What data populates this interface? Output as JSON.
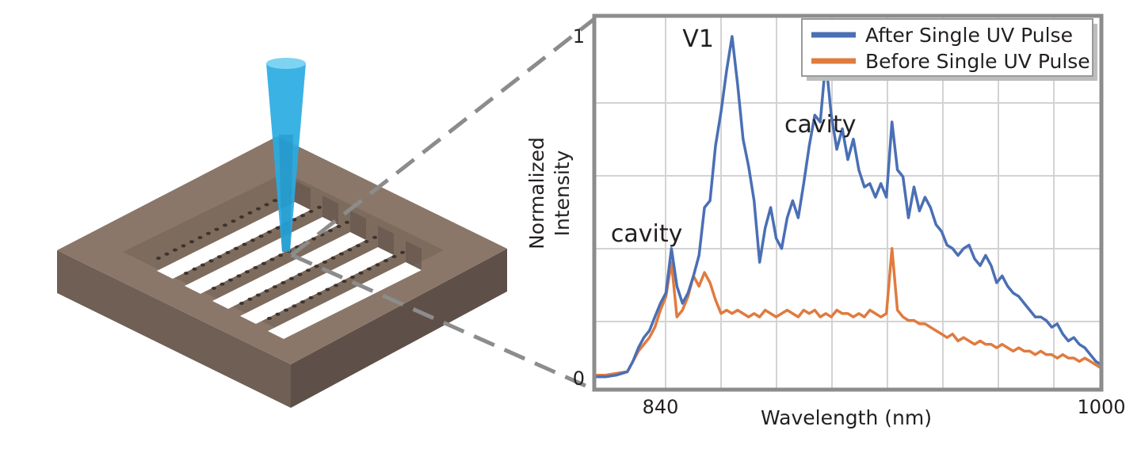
{
  "chart_data": {
    "type": "line",
    "title": "",
    "xlabel": "Wavelength (nm)",
    "ylabel": "Normalized Intensity",
    "ylabel_lines": [
      "Normalized",
      "Intensity"
    ],
    "xlim": [
      816,
      1000
    ],
    "ylim": [
      0,
      1
    ],
    "x_tick_labels": [
      {
        "value": 840,
        "text": "840"
      },
      {
        "value": 1000,
        "text": "1000"
      }
    ],
    "y_tick_labels": [
      {
        "value": 0,
        "text": "0"
      },
      {
        "value": 1,
        "text": "1"
      }
    ],
    "grid": true,
    "legend_position": "top-right",
    "annotations": [
      {
        "text": "V1",
        "x": 848,
        "y": 0.97
      },
      {
        "text": "cavity",
        "x": 885,
        "y": 0.72
      },
      {
        "text": "cavity",
        "x": 822,
        "y": 0.4
      }
    ],
    "series": [
      {
        "name": "After Single UV Pulse",
        "color": "#4a6fb5",
        "x": [
          816,
          820,
          824,
          828,
          830,
          832,
          834,
          836,
          838,
          840,
          842,
          844,
          846,
          848,
          850,
          852,
          854,
          856,
          858,
          860,
          862,
          864,
          866,
          868,
          870,
          872,
          874,
          876,
          878,
          880,
          882,
          884,
          886,
          888,
          890,
          892,
          894,
          896,
          898,
          900,
          902,
          904,
          906,
          908,
          910,
          912,
          914,
          916,
          918,
          920,
          922,
          924,
          926,
          928,
          930,
          932,
          934,
          936,
          938,
          940,
          942,
          944,
          946,
          948,
          950,
          952,
          954,
          956,
          958,
          960,
          962,
          964,
          966,
          968,
          970,
          972,
          974,
          976,
          978,
          980,
          982,
          984,
          986,
          988,
          990,
          992,
          994,
          996,
          998,
          1000
        ],
        "y": [
          0.005,
          0.005,
          0.01,
          0.02,
          0.05,
          0.09,
          0.12,
          0.14,
          0.18,
          0.22,
          0.25,
          0.38,
          0.27,
          0.22,
          0.25,
          0.3,
          0.36,
          0.5,
          0.52,
          0.68,
          0.78,
          0.9,
          1.0,
          0.86,
          0.7,
          0.62,
          0.52,
          0.34,
          0.44,
          0.5,
          0.41,
          0.38,
          0.47,
          0.52,
          0.47,
          0.57,
          0.68,
          0.77,
          0.75,
          0.93,
          0.77,
          0.67,
          0.73,
          0.64,
          0.7,
          0.61,
          0.56,
          0.57,
          0.53,
          0.57,
          0.53,
          0.75,
          0.61,
          0.59,
          0.47,
          0.56,
          0.49,
          0.53,
          0.5,
          0.45,
          0.43,
          0.39,
          0.38,
          0.36,
          0.38,
          0.39,
          0.35,
          0.33,
          0.36,
          0.33,
          0.28,
          0.3,
          0.27,
          0.25,
          0.24,
          0.22,
          0.2,
          0.18,
          0.18,
          0.17,
          0.15,
          0.16,
          0.13,
          0.11,
          0.12,
          0.1,
          0.09,
          0.07,
          0.05,
          0.04
        ]
      },
      {
        "name": "Before Single UV Pulse",
        "color": "#e07b3e",
        "x": [
          816,
          820,
          824,
          828,
          830,
          832,
          834,
          836,
          838,
          840,
          842,
          844,
          846,
          848,
          850,
          852,
          854,
          856,
          858,
          860,
          862,
          864,
          866,
          868,
          870,
          872,
          874,
          876,
          878,
          880,
          882,
          884,
          886,
          888,
          890,
          892,
          894,
          896,
          898,
          900,
          902,
          904,
          906,
          908,
          910,
          912,
          914,
          916,
          918,
          920,
          922,
          924,
          926,
          928,
          930,
          932,
          934,
          936,
          938,
          940,
          942,
          944,
          946,
          948,
          950,
          952,
          954,
          956,
          958,
          960,
          962,
          964,
          966,
          968,
          970,
          972,
          974,
          976,
          978,
          980,
          982,
          984,
          986,
          988,
          990,
          992,
          994,
          996,
          998,
          1000
        ],
        "y": [
          0.01,
          0.01,
          0.015,
          0.02,
          0.05,
          0.08,
          0.1,
          0.12,
          0.15,
          0.2,
          0.24,
          0.34,
          0.18,
          0.2,
          0.24,
          0.3,
          0.27,
          0.31,
          0.28,
          0.23,
          0.19,
          0.2,
          0.19,
          0.2,
          0.19,
          0.18,
          0.19,
          0.18,
          0.2,
          0.19,
          0.18,
          0.19,
          0.2,
          0.19,
          0.18,
          0.2,
          0.19,
          0.2,
          0.18,
          0.19,
          0.18,
          0.2,
          0.19,
          0.19,
          0.18,
          0.19,
          0.18,
          0.2,
          0.19,
          0.18,
          0.19,
          0.38,
          0.2,
          0.18,
          0.17,
          0.17,
          0.16,
          0.16,
          0.15,
          0.14,
          0.13,
          0.12,
          0.13,
          0.11,
          0.12,
          0.11,
          0.1,
          0.11,
          0.1,
          0.1,
          0.09,
          0.1,
          0.09,
          0.08,
          0.09,
          0.08,
          0.08,
          0.07,
          0.08,
          0.07,
          0.07,
          0.06,
          0.07,
          0.06,
          0.06,
          0.05,
          0.06,
          0.05,
          0.04,
          0.03
        ]
      }
    ]
  },
  "illustration": {
    "chip_color": "#8a7769",
    "chip_side_dark": "#5e5048",
    "chip_side_mid": "#6f5f55",
    "beam_color": "#29abe2",
    "zoom_line_color": "#8c8c8c"
  }
}
